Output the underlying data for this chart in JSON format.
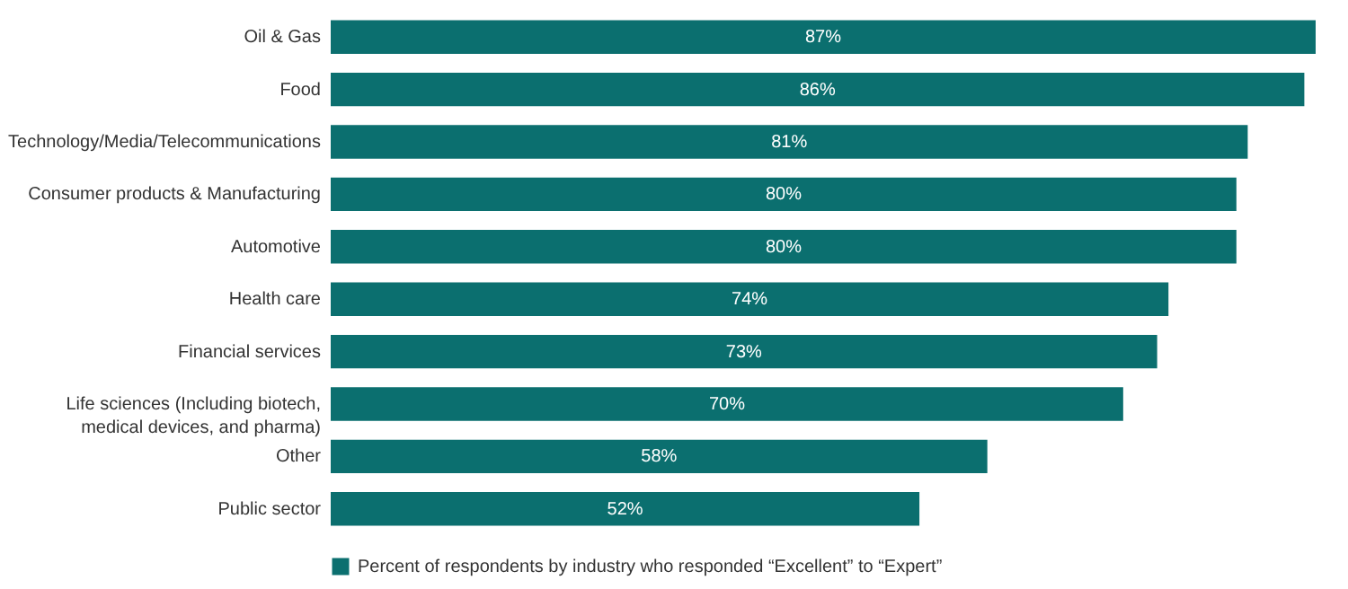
{
  "chart_data": {
    "type": "bar",
    "orientation": "horizontal",
    "categories": [
      "Oil & Gas",
      "Food",
      "Technology/Media/Telecommunications",
      "Consumer products & Manufacturing",
      "Automotive",
      "Health care",
      "Financial services",
      "Life sciences (Including biotech, medical devices, and pharma)",
      "Other",
      "Public sector"
    ],
    "series": [
      {
        "name": "Percent of respondents by industry who responded “Excellent” to “Expert”",
        "color": "#0b6f6f",
        "values": [
          87,
          86,
          81,
          80,
          80,
          74,
          73,
          70,
          58,
          52
        ],
        "value_labels": [
          "87%",
          "86%",
          "81%",
          "80%",
          "80%",
          "74%",
          "73%",
          "70%",
          "58%",
          "52%"
        ]
      }
    ],
    "legend": "bottom"
  }
}
